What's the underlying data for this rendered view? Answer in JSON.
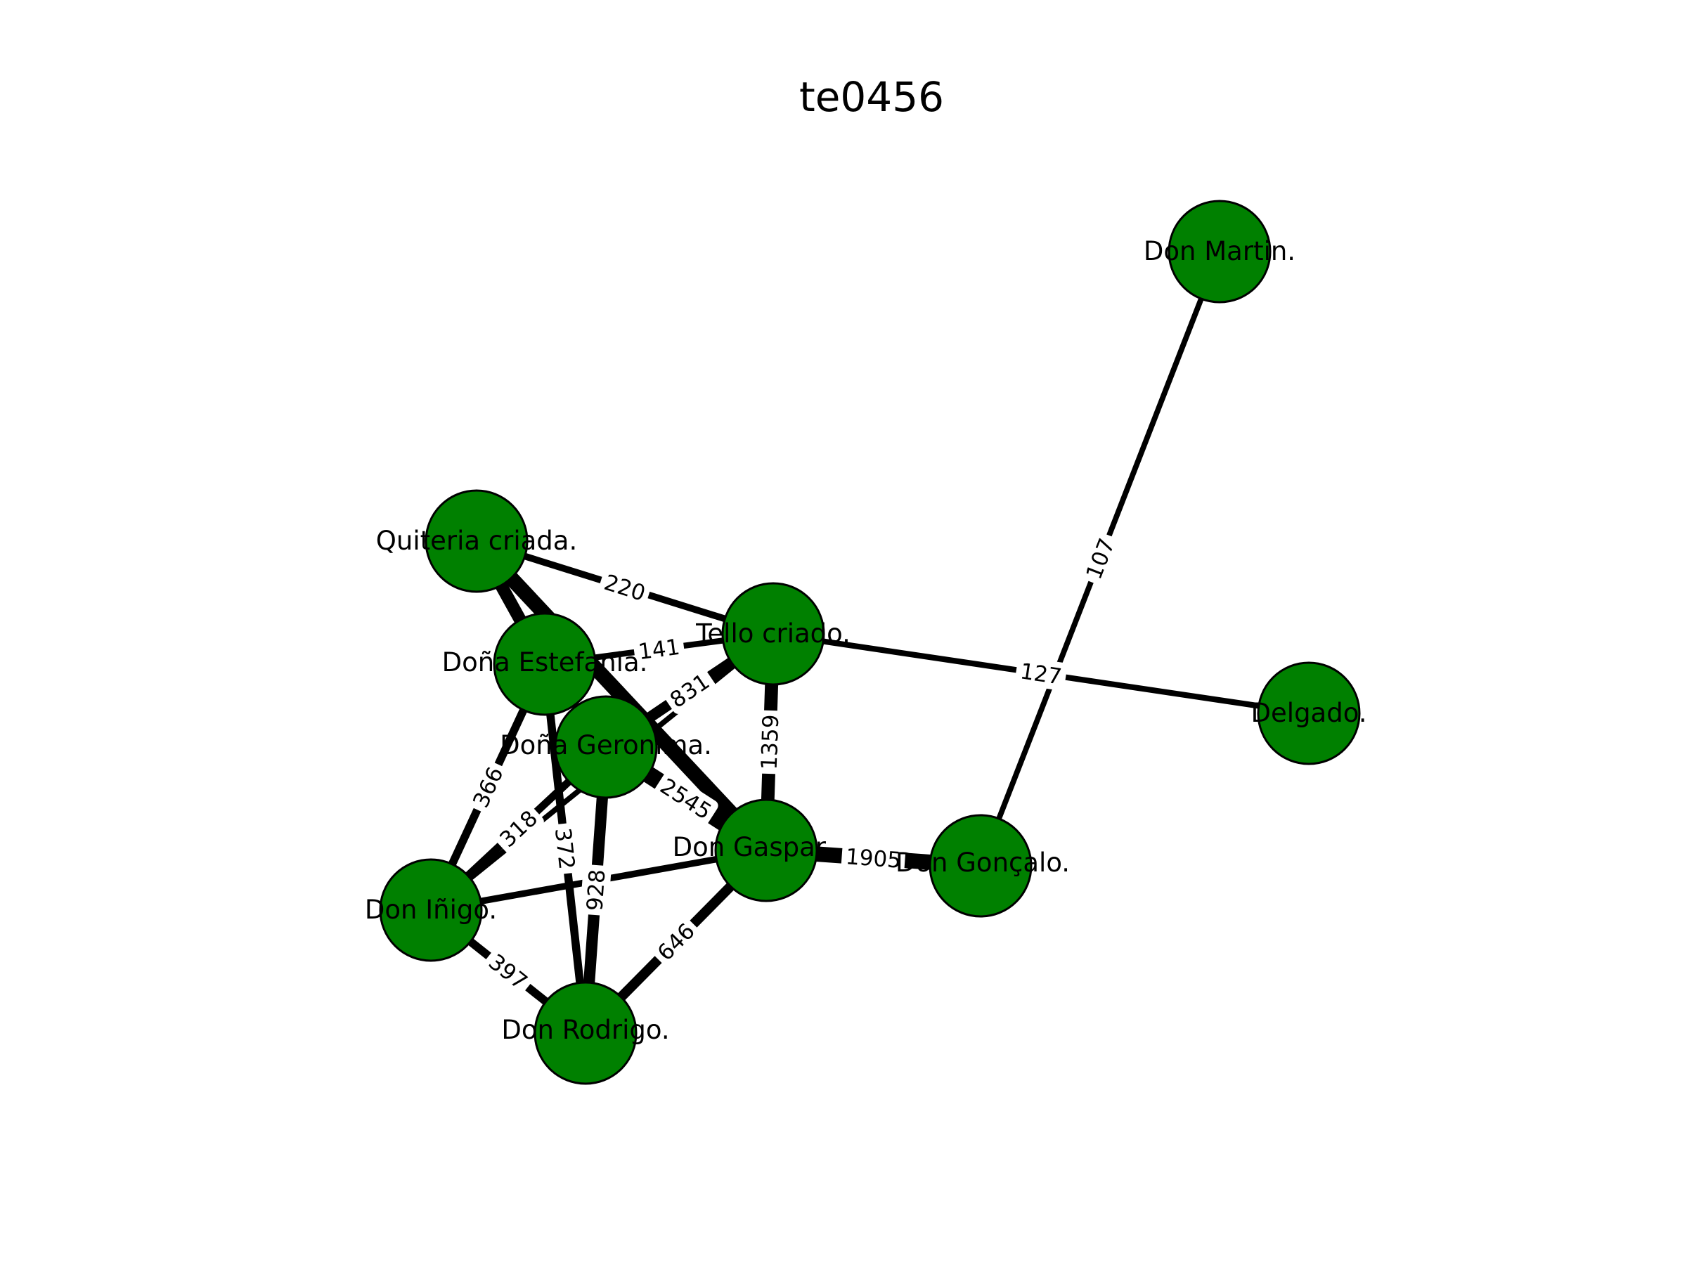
{
  "title": "te0456",
  "style": {
    "node_color": "#008000",
    "edge_color": "#000000",
    "background": "#ffffff"
  },
  "nodes": [
    {
      "id": "don_martin",
      "label": "Don Martin."
    },
    {
      "id": "quiteria",
      "label": "Quiteria criada."
    },
    {
      "id": "tello",
      "label": "Tello criado."
    },
    {
      "id": "delgado",
      "label": "Delgado."
    },
    {
      "id": "estefania",
      "label": "Doña Estefania."
    },
    {
      "id": "geronima",
      "label": "Doña Geronima."
    },
    {
      "id": "gaspar",
      "label": "Don Gaspar."
    },
    {
      "id": "goncalo",
      "label": "Don Gonçalo."
    },
    {
      "id": "inigo",
      "label": "Don Iñigo."
    },
    {
      "id": "rodrigo",
      "label": "Don Rodrigo."
    }
  ],
  "edges": [
    {
      "source": "don_martin",
      "target": "goncalo",
      "weight": 107,
      "label": "107"
    },
    {
      "source": "tello",
      "target": "delgado",
      "weight": 127,
      "label": "127"
    },
    {
      "source": "quiteria",
      "target": "tello",
      "weight": 220,
      "label": "220"
    },
    {
      "source": "estefania",
      "target": "tello",
      "weight": 141,
      "label": "141"
    },
    {
      "source": "geronima",
      "target": "tello",
      "weight": 831,
      "label": "831"
    },
    {
      "source": "tello",
      "target": "gaspar",
      "weight": 1359,
      "label": "1359"
    },
    {
      "source": "gaspar",
      "target": "goncalo",
      "weight": 1905,
      "label": "1905"
    },
    {
      "source": "geronima",
      "target": "gaspar",
      "weight": 2545,
      "label": "2545"
    },
    {
      "source": "quiteria",
      "target": "gaspar",
      "weight": 1800,
      "label": ""
    },
    {
      "source": "estefania",
      "target": "inigo",
      "weight": 366,
      "label": "366"
    },
    {
      "source": "geronima",
      "target": "inigo",
      "weight": 318,
      "label": "318"
    },
    {
      "source": "estefania",
      "target": "rodrigo",
      "weight": 372,
      "label": "372"
    },
    {
      "source": "geronima",
      "target": "rodrigo",
      "weight": 928,
      "label": "928"
    },
    {
      "source": "gaspar",
      "target": "rodrigo",
      "weight": 646,
      "label": "646"
    },
    {
      "source": "inigo",
      "target": "rodrigo",
      "weight": 397,
      "label": "397"
    },
    {
      "source": "inigo",
      "target": "gaspar",
      "weight": 200,
      "label": ""
    },
    {
      "source": "inigo",
      "target": "tello",
      "weight": 100,
      "label": ""
    },
    {
      "source": "quiteria",
      "target": "estefania",
      "weight": 1200,
      "label": ""
    }
  ]
}
